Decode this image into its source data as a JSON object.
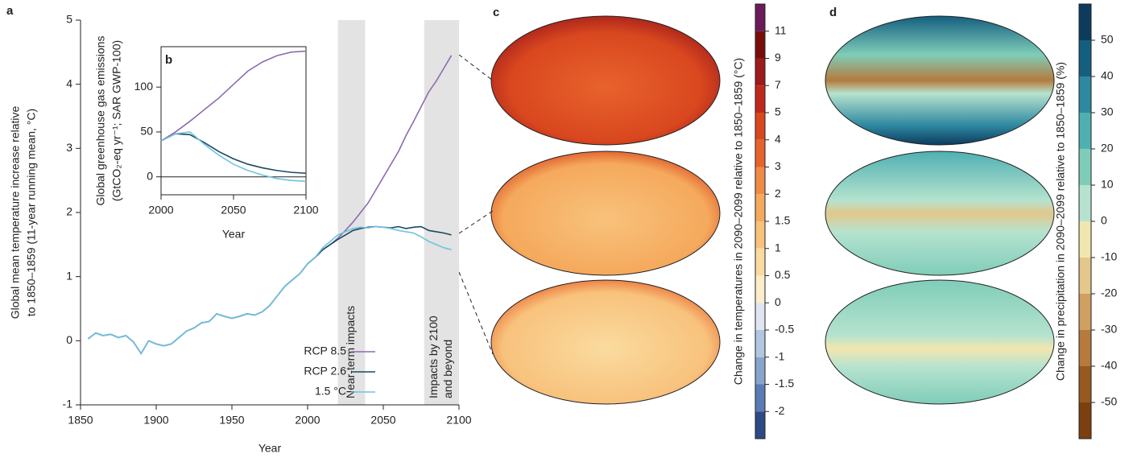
{
  "chart_data": [
    {
      "type": "line",
      "title": "a",
      "xlabel": "Year",
      "ylabel": [
        "Global mean temperature increase relative",
        "to 1850–1859 (11-year running mean, °C)"
      ],
      "xlim": [
        1850,
        2100
      ],
      "ylim": [
        -1,
        5
      ],
      "xticks": [
        1850,
        1900,
        1950,
        2000,
        2050,
        2100
      ],
      "yticks": [
        -1,
        0,
        1,
        2,
        3,
        4,
        5
      ],
      "legend": "lower right",
      "annotations": [
        {
          "label": [
            "Near-term impacts"
          ],
          "xrange": [
            2020,
            2038
          ]
        },
        {
          "label": [
            "Impacts by 2100",
            "and beyond"
          ],
          "xrange": [
            2077,
            2100
          ]
        }
      ],
      "x": [
        1855,
        1860,
        1865,
        1870,
        1875,
        1880,
        1885,
        1890,
        1895,
        1900,
        1905,
        1910,
        1915,
        1920,
        1925,
        1930,
        1935,
        1940,
        1945,
        1950,
        1955,
        1960,
        1965,
        1970,
        1975,
        1980,
        1985,
        1990,
        1995,
        2000,
        2005,
        2010,
        2015,
        2020,
        2025,
        2030,
        2035,
        2040,
        2045,
        2050,
        2055,
        2060,
        2065,
        2070,
        2075,
        2080,
        2085,
        2090,
        2095
      ],
      "series": [
        {
          "name": "RCP 8.5",
          "color": "#8e6bb0",
          "values": [
            0.03,
            0.12,
            0.08,
            0.1,
            0.05,
            0.08,
            -0.02,
            -0.2,
            0.0,
            -0.05,
            -0.08,
            -0.05,
            0.05,
            0.15,
            0.2,
            0.28,
            0.3,
            0.42,
            0.38,
            0.35,
            0.38,
            0.42,
            0.4,
            0.45,
            0.55,
            0.7,
            0.85,
            0.95,
            1.05,
            1.2,
            1.3,
            1.42,
            1.5,
            1.6,
            1.72,
            1.85,
            2.0,
            2.15,
            2.35,
            2.55,
            2.75,
            2.95,
            3.2,
            3.42,
            3.65,
            3.88,
            4.05,
            4.25,
            4.45
          ]
        },
        {
          "name": "RCP 2.6",
          "color": "#1a4a63",
          "values": [
            0.03,
            0.12,
            0.08,
            0.1,
            0.05,
            0.08,
            -0.02,
            -0.2,
            0.0,
            -0.05,
            -0.08,
            -0.05,
            0.05,
            0.15,
            0.2,
            0.28,
            0.3,
            0.42,
            0.38,
            0.35,
            0.38,
            0.42,
            0.4,
            0.45,
            0.55,
            0.7,
            0.85,
            0.95,
            1.05,
            1.2,
            1.3,
            1.42,
            1.5,
            1.58,
            1.65,
            1.72,
            1.75,
            1.77,
            1.78,
            1.77,
            1.76,
            1.78,
            1.75,
            1.77,
            1.78,
            1.72,
            1.7,
            1.68,
            1.65
          ]
        },
        {
          "name": "1.5 °C",
          "color": "#6fc3df",
          "values": [
            0.03,
            0.12,
            0.08,
            0.1,
            0.05,
            0.08,
            -0.02,
            -0.2,
            0.0,
            -0.05,
            -0.08,
            -0.05,
            0.05,
            0.15,
            0.2,
            0.28,
            0.3,
            0.42,
            0.38,
            0.35,
            0.38,
            0.42,
            0.4,
            0.45,
            0.55,
            0.7,
            0.85,
            0.95,
            1.05,
            1.2,
            1.3,
            1.45,
            1.55,
            1.65,
            1.7,
            1.75,
            1.77,
            1.76,
            1.78,
            1.77,
            1.75,
            1.72,
            1.7,
            1.68,
            1.62,
            1.55,
            1.5,
            1.45,
            1.42
          ]
        }
      ]
    },
    {
      "type": "line",
      "title": "b",
      "xlabel": "Year",
      "ylabel": [
        "Global greenhouse gas emissions",
        "(GtCO₂-eq yr⁻¹; SAR GWP-100)"
      ],
      "xlim": [
        2000,
        2100
      ],
      "ylim": [
        -20,
        145
      ],
      "xticks": [
        2000,
        2050,
        2100
      ],
      "yticks": [
        0,
        50,
        100
      ],
      "zero_line": true,
      "x": [
        2000,
        2010,
        2020,
        2030,
        2040,
        2050,
        2060,
        2070,
        2080,
        2090,
        2100
      ],
      "series": [
        {
          "name": "RCP 8.5",
          "color": "#8e6bb0",
          "values": [
            40,
            50,
            62,
            75,
            88,
            103,
            118,
            128,
            135,
            139,
            140
          ]
        },
        {
          "name": "RCP 2.6",
          "color": "#1a4a63",
          "values": [
            40,
            48,
            47,
            38,
            28,
            20,
            14,
            10,
            7,
            5,
            4
          ]
        },
        {
          "name": "1.5 °C",
          "color": "#6fc3df",
          "values": [
            40,
            48,
            50,
            36,
            24,
            14,
            7,
            2,
            -2,
            -4,
            -5
          ]
        }
      ]
    },
    {
      "type": "colorbar",
      "title": "c",
      "label": "Change in temperatures in 2090–2099 relative to 1850–1859 (°C)",
      "ticks": [
        11,
        9,
        7,
        5,
        4,
        3,
        2,
        1.5,
        1,
        0.5,
        0,
        -0.5,
        -1,
        -1.5,
        -2
      ],
      "colors": [
        "#6b1a5a",
        "#7a0c0c",
        "#9e1b1b",
        "#c0281c",
        "#d9471f",
        "#e8632c",
        "#f08a45",
        "#f5a95c",
        "#f8c27c",
        "#fadb9f",
        "#fbeccb",
        "#dfe6f1",
        "#b3c6e0",
        "#87a4cc",
        "#5a7cb5",
        "#2e4a85"
      ]
    },
    {
      "type": "colorbar",
      "title": "d",
      "label": "Change in precipitation in 2090–2099 relative to 1850–1859 (%)",
      "ticks": [
        50,
        40,
        30,
        20,
        10,
        0,
        -10,
        -20,
        -30,
        -40,
        -50
      ],
      "colors": [
        "#0d3b5e",
        "#145f80",
        "#2e88a0",
        "#4fb0b2",
        "#7fcdb9",
        "#b6e3cf",
        "#f2e6b0",
        "#e3c78b",
        "#cfa062",
        "#b57a3c",
        "#965a20",
        "#7a4010"
      ]
    }
  ]
}
